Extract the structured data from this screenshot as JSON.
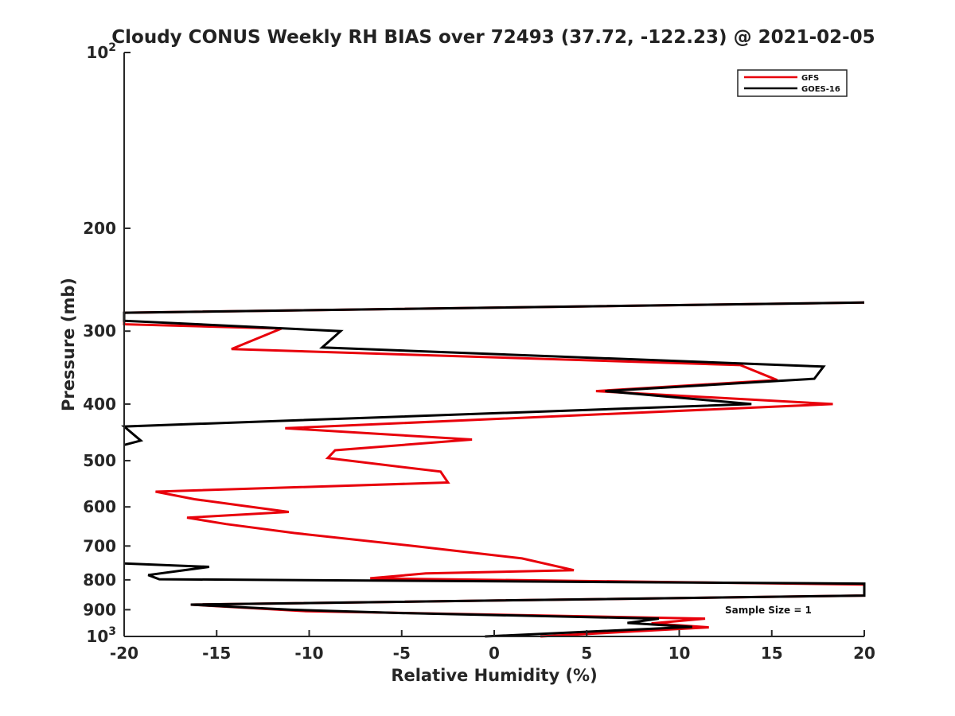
{
  "chart_data": {
    "type": "line",
    "title": "Cloudy CONUS Weekly RH BIAS over 72493 (37.72, -122.23) @ 2021-02-05",
    "xlabel": "Relative Humidity (%)",
    "ylabel": "Pressure (mb)",
    "xlim": [
      -20,
      20
    ],
    "ylim": [
      100,
      1000
    ],
    "y_scale": "log",
    "y_reversed": true,
    "grid": false,
    "legend_position": "top-right",
    "x_ticks": [
      "-20",
      "-15",
      "-10",
      "-5",
      "0",
      "5",
      "10",
      "15",
      "20"
    ],
    "x_tick_values": [
      -20,
      -15,
      -10,
      -5,
      0,
      5,
      10,
      15,
      20
    ],
    "y_ticks": [
      {
        "value": 100,
        "base": "10",
        "exp": "2"
      },
      {
        "value": 200,
        "label": "200"
      },
      {
        "value": 300,
        "label": "300"
      },
      {
        "value": 400,
        "label": "400"
      },
      {
        "value": 500,
        "label": "500"
      },
      {
        "value": 600,
        "label": "600"
      },
      {
        "value": 700,
        "label": "700"
      },
      {
        "value": 800,
        "label": "800"
      },
      {
        "value": 900,
        "label": "900"
      },
      {
        "value": 1000,
        "base": "10",
        "exp": "3"
      }
    ],
    "annotation": "Sample Size = 1",
    "series": [
      {
        "name": "GFS",
        "color": "#e8000b",
        "points": [
          [
            20,
            268
          ],
          [
            -20,
            279
          ],
          [
            -20,
            292
          ],
          [
            -11.5,
            297
          ],
          [
            -14.2,
            322
          ],
          [
            13.3,
            343
          ],
          [
            15.3,
            364
          ],
          [
            5.5,
            380
          ],
          [
            18.3,
            400
          ],
          [
            -11.3,
            440
          ],
          [
            -1.2,
            460
          ],
          [
            -8.6,
            480
          ],
          [
            -9,
            495
          ],
          [
            -2.9,
            522
          ],
          [
            -2.5,
            545
          ],
          [
            -18.3,
            565
          ],
          [
            -16.2,
            582
          ],
          [
            -11.1,
            612
          ],
          [
            -16.6,
            626
          ],
          [
            -14.5,
            642
          ],
          [
            -10.8,
            665
          ],
          [
            -4,
            702
          ],
          [
            1.5,
            735
          ],
          [
            4.3,
            770
          ],
          [
            -3.7,
            780
          ],
          [
            -6.7,
            795
          ],
          [
            20,
            815
          ],
          [
            20,
            851
          ],
          [
            -16.4,
            882
          ],
          [
            -10.2,
            905
          ],
          [
            11.4,
            932
          ],
          [
            8.5,
            950
          ],
          [
            11.6,
            965
          ],
          [
            2.5,
            1000
          ]
        ]
      },
      {
        "name": "GOES-16",
        "color": "#000000",
        "points": [
          [
            20,
            268
          ],
          [
            -20,
            279
          ],
          [
            -20,
            288
          ],
          [
            -8.3,
            300
          ],
          [
            -9.3,
            320
          ],
          [
            17.8,
            345
          ],
          [
            17.3,
            362
          ],
          [
            6,
            380
          ],
          [
            13.9,
            400
          ],
          [
            -20,
            437
          ],
          [
            -19.1,
            462
          ],
          [
            -20,
            470
          ]
        ]
      },
      {
        "name": "GOES-16",
        "color": "#000000",
        "points": [
          [
            -20,
            750
          ],
          [
            -15.4,
            760
          ],
          [
            -18.7,
            785
          ],
          [
            -18.1,
            798
          ],
          [
            20,
            812
          ],
          [
            20,
            851
          ],
          [
            -16.4,
            882
          ],
          [
            -11,
            900
          ],
          [
            -5,
            912
          ],
          [
            8.9,
            932
          ],
          [
            7.2,
            948
          ],
          [
            10.7,
            963
          ],
          [
            -0.5,
            1000
          ]
        ]
      }
    ]
  },
  "legend": [
    {
      "label": "GFS",
      "color": "#e8000b"
    },
    {
      "label": "GOES-16",
      "color": "#000000"
    }
  ]
}
